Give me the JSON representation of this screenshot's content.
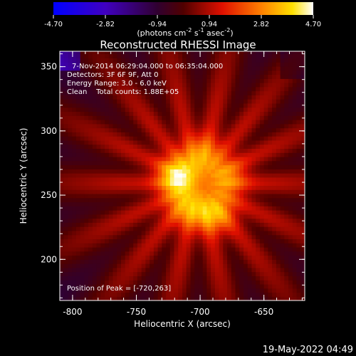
{
  "chart_data": {
    "type": "heatmap",
    "title": "Reconstructed RHESSI Image",
    "colorbar": {
      "ticks": [
        "-4.70",
        "-2.82",
        "-0.94",
        "0.94",
        "2.82",
        "4.70"
      ],
      "range": [
        -4.7,
        4.7
      ],
      "unit_prefix": "(photons cm",
      "unit_exp1": "-2",
      "unit_mid": " s",
      "unit_exp2": "-1",
      "unit_mid2": " asec",
      "unit_exp3": "-2",
      "unit_suffix": ")"
    },
    "xlabel": "Heliocentric X (arcsec)",
    "ylabel": "Heliocentric Y (arcsec)",
    "xticks": [
      "-800",
      "-750",
      "-700",
      "-650"
    ],
    "xtick_values": [
      -800,
      -750,
      -700,
      -650
    ],
    "yticks": [
      "200",
      "250",
      "300",
      "350"
    ],
    "ytick_values": [
      200,
      250,
      300,
      350
    ],
    "xlim": [
      -810,
      -618
    ],
    "ylim": [
      168,
      362
    ],
    "annotations": {
      "time": "7-Nov-2014 06:29:04.000 to 06:35:04.000",
      "detectors": "Detectors: 3F 6F 9F, Att 0",
      "energy": "Energy Range: 3.0 - 6.0 keV",
      "clean": "Clean    Total counts: 1.88E+05",
      "peak": "Position of Peak = [-720,263]"
    },
    "sources": [
      {
        "x": -720,
        "y": 263,
        "value": 4.7
      },
      {
        "x": -700,
        "y": 281,
        "value": 3.4
      },
      {
        "x": -680,
        "y": 262,
        "value": 3.4
      },
      {
        "x": -690,
        "y": 234,
        "value": 3.8
      },
      {
        "x": -712,
        "y": 238,
        "value": 3.4
      }
    ],
    "background_level": 1.2
  },
  "footer": {
    "date": "19-May-2022 04:49"
  }
}
